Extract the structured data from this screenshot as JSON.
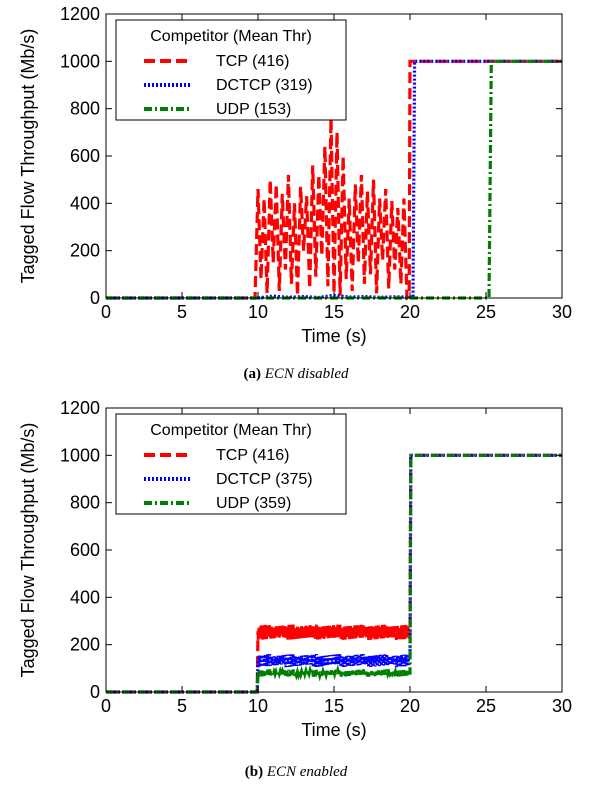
{
  "chart_data": [
    {
      "type": "line",
      "id": "a",
      "caption_letter": "(a)",
      "caption_text": "ECN disabled",
      "xlabel": "Time (s)",
      "ylabel": "Tagged Flow Throughput (Mb/s)",
      "xlim": [
        0,
        30
      ],
      "ylim": [
        0,
        1200
      ],
      "xticks": [
        0,
        5,
        10,
        15,
        20,
        25,
        30
      ],
      "yticks": [
        0,
        200,
        400,
        600,
        800,
        1000,
        1200
      ],
      "grid": false,
      "legend": {
        "title": "Competitor (Mean Thr)",
        "position": "top-left",
        "entries": [
          "TCP (416)",
          "DCTCP (319)",
          "UDP (153)"
        ]
      },
      "series": [
        {
          "name": "TCP (416)",
          "color": "#ff0000",
          "style": "dashed",
          "x": [
            0,
            9.8,
            10.0,
            10.2,
            10.4,
            10.6,
            10.8,
            11.0,
            11.2,
            11.4,
            11.6,
            11.8,
            12.0,
            12.2,
            12.4,
            12.6,
            12.8,
            13.0,
            13.2,
            13.4,
            13.6,
            13.8,
            14.0,
            14.2,
            14.4,
            14.6,
            14.8,
            15.0,
            15.2,
            15.4,
            15.6,
            15.8,
            16.0,
            16.2,
            16.4,
            16.6,
            16.8,
            17.0,
            17.2,
            17.4,
            17.6,
            17.8,
            18.0,
            18.2,
            18.4,
            18.6,
            18.8,
            19.0,
            19.2,
            19.4,
            19.6,
            19.8,
            19.95,
            20.0,
            30.0
          ],
          "y": [
            0,
            0,
            460,
            80,
            420,
            20,
            500,
            150,
            480,
            30,
            440,
            120,
            520,
            60,
            400,
            10,
            470,
            200,
            430,
            40,
            560,
            90,
            520,
            180,
            640,
            50,
            760,
            20,
            700,
            10,
            600,
            80,
            420,
            30,
            480,
            150,
            520,
            60,
            450,
            100,
            500,
            20,
            420,
            160,
            460,
            40,
            410,
            120,
            380,
            60,
            420,
            0,
            10,
            1000,
            1000
          ]
        },
        {
          "name": "DCTCP (319)",
          "color": "#0000ff",
          "style": "dotted",
          "x": [
            0,
            10.0,
            11.0,
            12.0,
            13.0,
            14.0,
            15.0,
            16.0,
            17.0,
            18.0,
            19.0,
            20.0,
            20.2,
            20.3,
            30.0
          ],
          "y": [
            0,
            0,
            8,
            3,
            6,
            2,
            12,
            4,
            6,
            3,
            5,
            4,
            4,
            1000,
            1000
          ]
        },
        {
          "name": "UDP (153)",
          "color": "#008000",
          "style": "dashdot",
          "x": [
            0,
            25.2,
            25.35,
            30.0
          ],
          "y": [
            0,
            0,
            1000,
            1000
          ]
        }
      ]
    },
    {
      "type": "line",
      "id": "b",
      "caption_letter": "(b)",
      "caption_text": "ECN enabled",
      "xlabel": "Time (s)",
      "ylabel": "Tagged Flow Throughput (Mb/s)",
      "xlim": [
        0,
        30
      ],
      "ylim": [
        0,
        1200
      ],
      "xticks": [
        0,
        5,
        10,
        15,
        20,
        25,
        30
      ],
      "yticks": [
        0,
        200,
        400,
        600,
        800,
        1000,
        1200
      ],
      "grid": false,
      "legend": {
        "title": "Competitor (Mean Thr)",
        "position": "top-left",
        "entries": [
          "TCP (416)",
          "DCTCP (375)",
          "UDP (359)"
        ]
      },
      "series": [
        {
          "name": "TCP (416)",
          "color": "#ff0000",
          "style": "dashed",
          "band": {
            "x_start": 10.0,
            "x_end": 20.0,
            "low": 220,
            "high": 285
          },
          "x": [
            0,
            9.95,
            10.0,
            20.0,
            20.05,
            30.0
          ],
          "y": [
            0,
            0,
            250,
            250,
            1000,
            1000
          ]
        },
        {
          "name": "DCTCP (375)",
          "color": "#0000ff",
          "style": "dotted",
          "band": {
            "x_start": 10.0,
            "x_end": 20.0,
            "low": 105,
            "high": 160
          },
          "x": [
            0,
            9.95,
            10.0,
            20.0,
            20.05,
            30.0
          ],
          "y": [
            0,
            0,
            135,
            135,
            1000,
            1000
          ]
        },
        {
          "name": "UDP (359)",
          "color": "#008000",
          "style": "dashdot",
          "band": {
            "x_start": 10.0,
            "x_end": 20.0,
            "low": 65,
            "high": 95
          },
          "x": [
            0,
            9.95,
            10.0,
            20.0,
            20.05,
            30.0
          ],
          "y": [
            0,
            0,
            80,
            80,
            1000,
            1000
          ]
        }
      ]
    }
  ]
}
